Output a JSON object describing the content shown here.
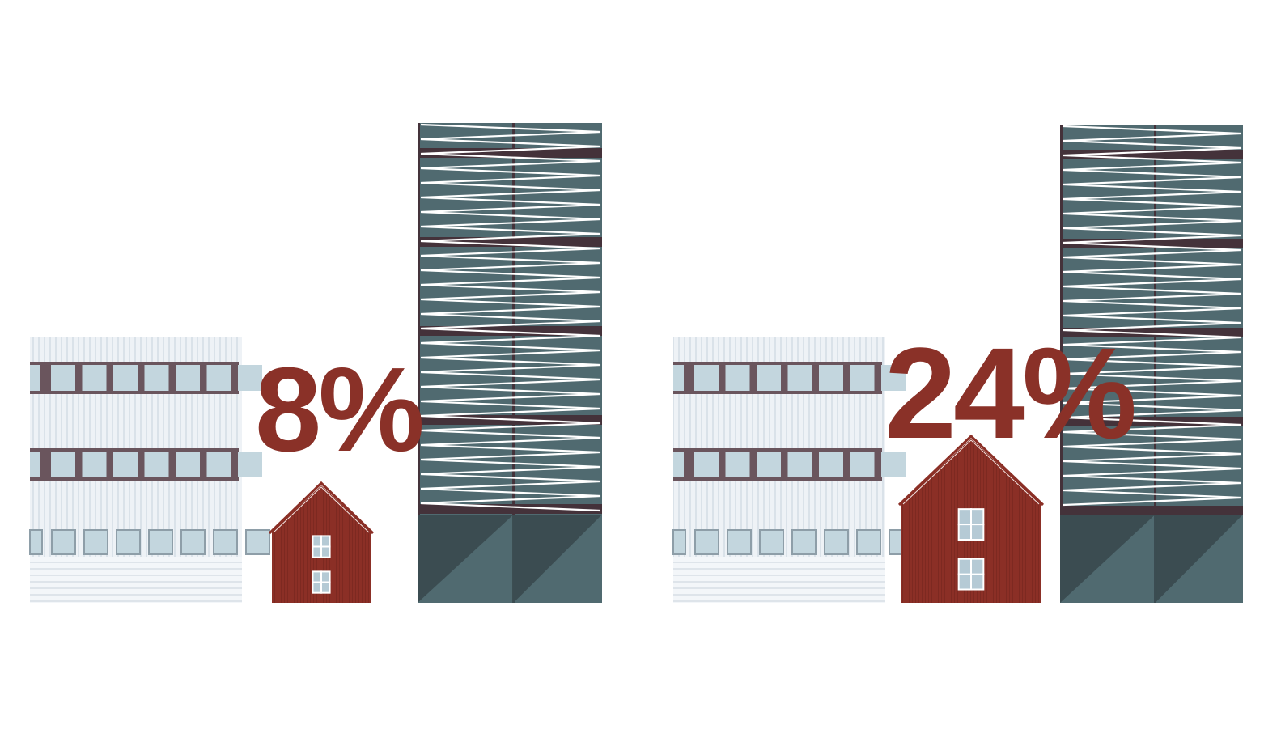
{
  "panels": [
    {
      "percent_label": "8%",
      "house_stories": 2,
      "value_percent": 8
    },
    {
      "percent_label": "24%",
      "house_stories": 2,
      "value_percent": 24
    }
  ],
  "colors": {
    "accent_red": "#8a3128",
    "house_red": "#8b2f26",
    "tower_teal": "#506a70",
    "tower_dark": "#3b4c51",
    "floor_band": "#44323a",
    "office_facade": "#eef2f6",
    "office_window": "#c3d6de",
    "office_frame": "#6a555d"
  }
}
